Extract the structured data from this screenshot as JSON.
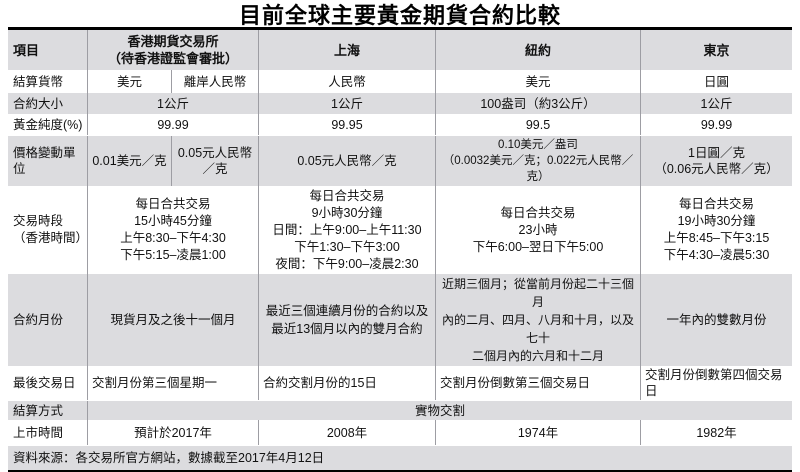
{
  "title": "目前全球主要黃金期貨合約比較",
  "colors": {
    "band_gray": "#dcdcdf",
    "divider": "#9d9da3",
    "rule": "#000000"
  },
  "table": {
    "header": {
      "item": "項目",
      "hk": "香港期貨交易所\n（待香港證監會審批）",
      "sh": "上海",
      "ny": "紐約",
      "tk": "東京"
    },
    "currency": {
      "label": "結算貨幣",
      "hk_usd": "美元",
      "hk_cnh": "離岸人民幣",
      "sh": "人民幣",
      "ny": "美元",
      "tk": "日圓"
    },
    "size": {
      "label": "合約大小",
      "hk": "1公斤",
      "sh": "1公斤",
      "ny": "100盎司（約3公斤）",
      "tk": "1公斤"
    },
    "purity": {
      "label": "黃金純度(%)",
      "hk": "99.99",
      "sh": "99.95",
      "ny": "99.5",
      "tk": "99.99"
    },
    "tick": {
      "label": "價格變動單位",
      "hk_usd": "0.01美元／克",
      "hk_cnh": "0.05元人民幣／克",
      "sh": "0.05元人民幣／克",
      "ny": "0.10美元／盎司\n（0.0032美元／克；0.022元人民幣／克）",
      "tk": "1日圓／克\n（0.06元人民幣／克）"
    },
    "hours": {
      "label": "交易時段\n（香港時間）",
      "hk": "每日合共交易\n15小時45分鐘\n上午8:30–下午4:30\n下午5:15–凌晨1:00",
      "sh": "每日合共交易\n9小時30分鐘\n日間：上午9:00–上午11:30\n下午1:30–下午3:00\n夜間：下午9:00–凌晨2:30",
      "ny": "每日合共交易\n23小時\n下午6:00–翌日下午5:00",
      "tk": "每日合共交易\n19小時30分鐘\n上午8:45–下午3:15\n下午4:30–凌晨5:30"
    },
    "months": {
      "label": "合約月份",
      "hk": "現貨月及之後十一個月",
      "sh": "最近三個連續月份的合約以及\n最近13個月以內的雙月合約",
      "ny": "近期三個月；從當前月份起二十三個月\n內的二月、四月、八月和十月，以及七十\n二個月內的六月和十二月",
      "tk": "一年內的雙數月份"
    },
    "lastday": {
      "label": "最後交易日",
      "hk": "交割月份第三個星期一",
      "sh": "合約交割月份的15日",
      "ny": "交割月份倒數第三個交易日",
      "tk": "交割月份倒數第四個交易日"
    },
    "settle": {
      "label": "結算方式",
      "value": "實物交割"
    },
    "listed": {
      "label": "上市時間",
      "hk": "預計於2017年",
      "sh": "2008年",
      "ny": "1974年",
      "tk": "1982年"
    },
    "footer": "資料來源：各交易所官方網站，數據截至2017年4月12日"
  }
}
